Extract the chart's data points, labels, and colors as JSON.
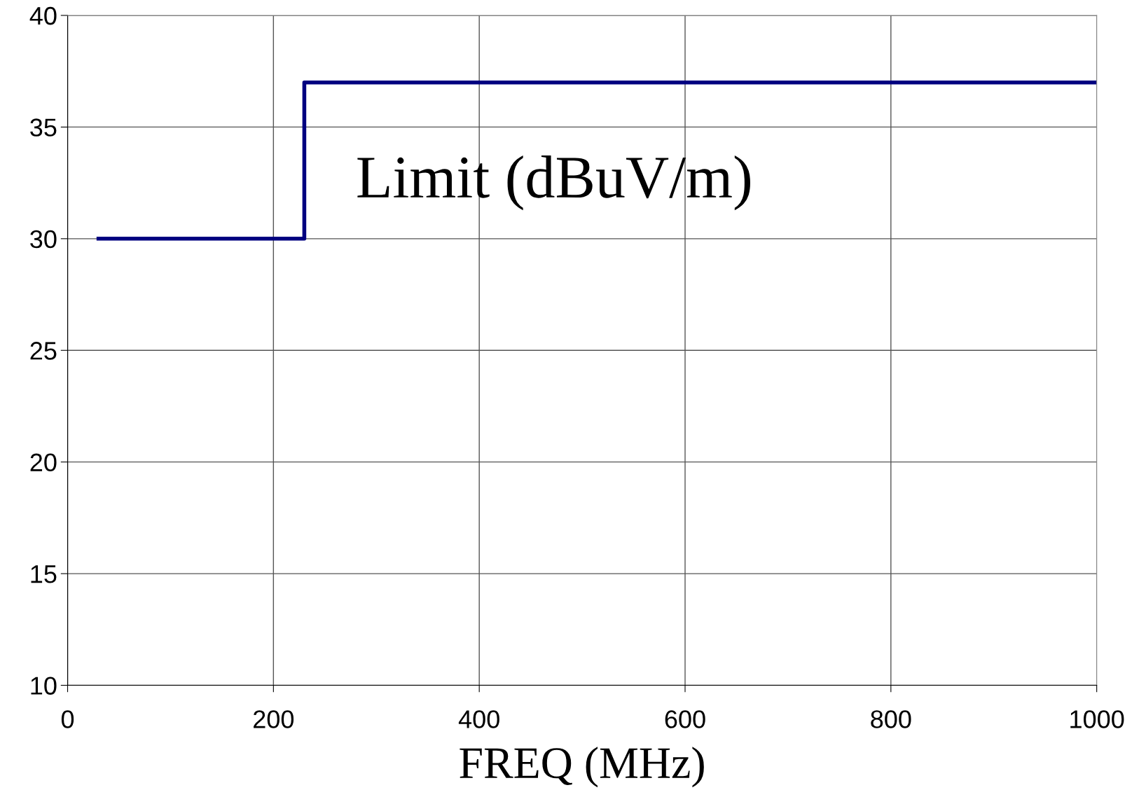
{
  "chart_data": {
    "type": "step",
    "xlabel": "FREQ (MHz)",
    "series": [
      {
        "name": "Limit (dBuV/m)",
        "color": "#000080",
        "x": [
          30,
          230,
          1000
        ],
        "values": [
          30,
          37,
          37
        ]
      }
    ],
    "xlim": [
      0,
      1000
    ],
    "xticks": [
      0,
      200,
      400,
      600,
      800,
      1000
    ],
    "ylim": [
      10,
      40
    ],
    "yticks": [
      10,
      15,
      20,
      25,
      30,
      35,
      40
    ],
    "grid": true,
    "line_style": "solid",
    "marker": "none"
  }
}
